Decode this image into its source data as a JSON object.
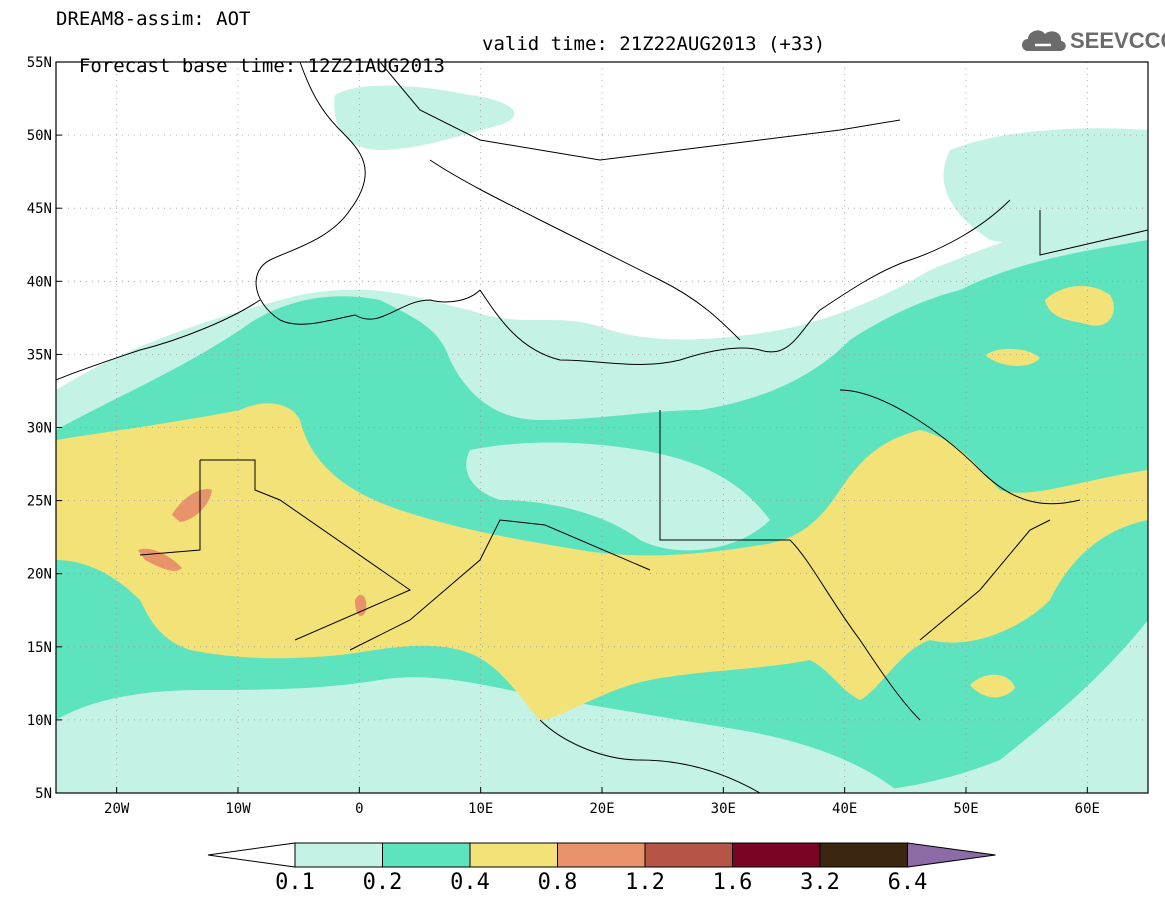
{
  "header": {
    "title": "DREAM8-assim: AOT",
    "base_time": "Forecast base time: 12Z21AUG2013",
    "valid_time": "valid time: 21Z22AUG2013 (+33)"
  },
  "logo": {
    "text": "SEEVCCC",
    "icon": "cloud-icon"
  },
  "axes": {
    "lat_labels": [
      "55N",
      "50N",
      "45N",
      "40N",
      "35N",
      "30N",
      "25N",
      "20N",
      "15N",
      "10N",
      "5N"
    ],
    "lon_labels": [
      "20W",
      "10W",
      "0",
      "10E",
      "20E",
      "30E",
      "40E",
      "50E",
      "60E"
    ]
  },
  "colorbar": {
    "labels": [
      "0.1",
      "0.2",
      "0.4",
      "0.8",
      "1.2",
      "1.6",
      "3.2",
      "6.4"
    ],
    "colors": [
      "#c4f3e6",
      "#5ee3bf",
      "#f3e277",
      "#e9936b",
      "#b65446",
      "#7a0424",
      "#3b2612",
      "#8c6ba6"
    ]
  },
  "palette": {
    "land_bg": "#ffffff",
    "aot_0_1": "#c4f3e6",
    "aot_0_2": "#5ee3bf",
    "aot_0_4": "#f3e277",
    "aot_0_8": "#e9936b"
  }
}
